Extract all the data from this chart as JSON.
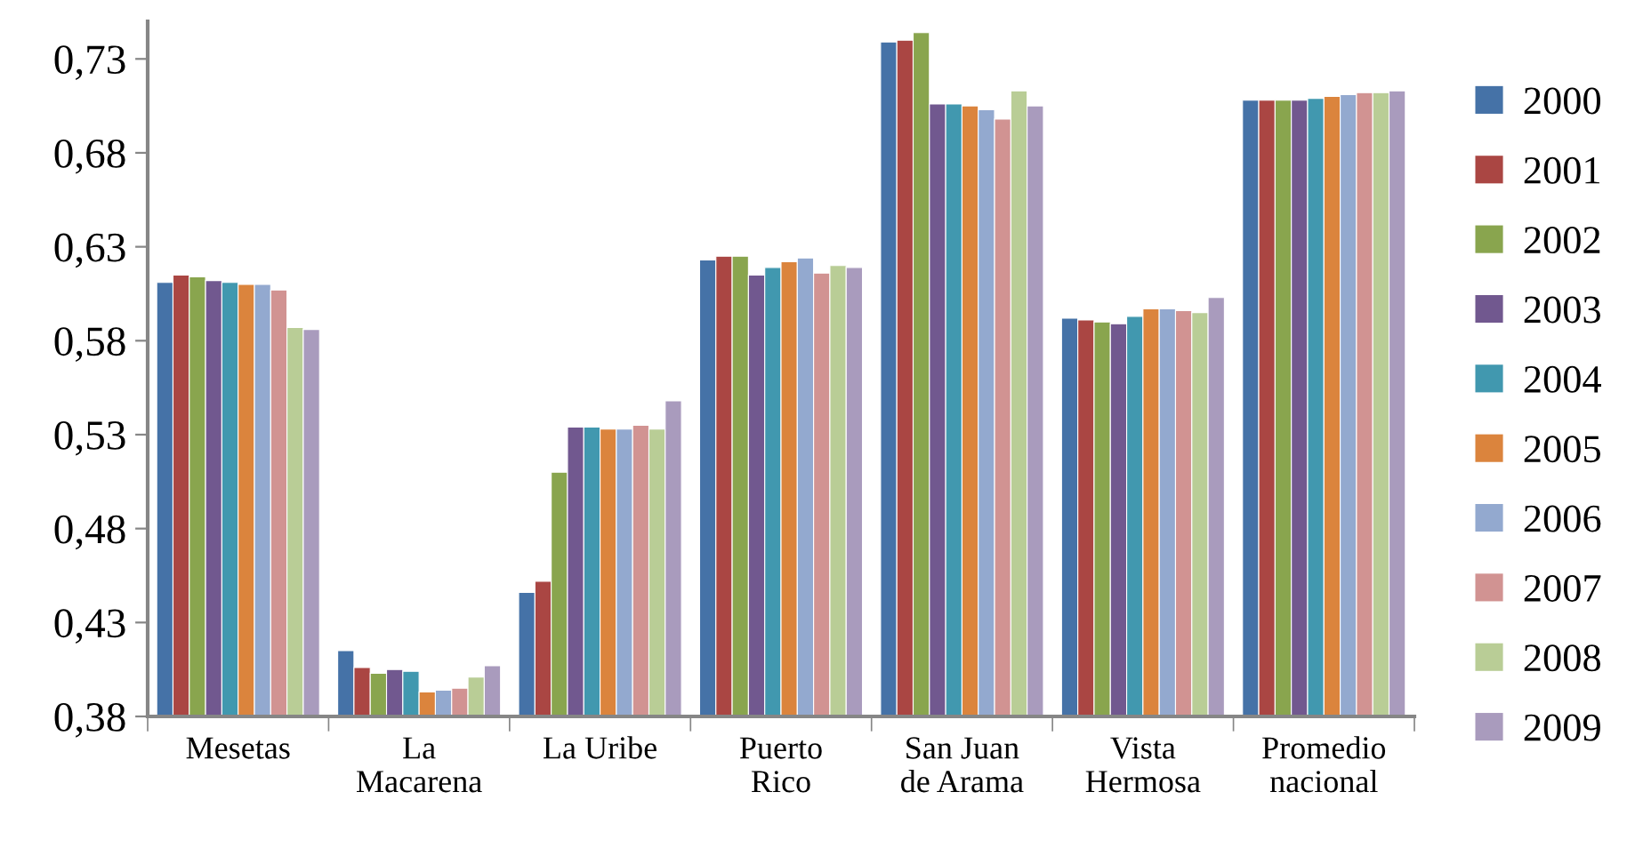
{
  "chart_data": {
    "type": "bar",
    "categories": [
      "Mesetas",
      "La\nMacarena",
      "La Uribe",
      "Puerto\nRico",
      "San Juan\nde Arama",
      "Vista\nHermosa",
      "Promedio\nnacional"
    ],
    "series": [
      {
        "name": "2000",
        "color": "#4572a7",
        "values": [
          0.611,
          0.415,
          0.446,
          0.623,
          0.739,
          0.592,
          0.708
        ]
      },
      {
        "name": "2001",
        "color": "#aa4643",
        "values": [
          0.615,
          0.406,
          0.452,
          0.625,
          0.74,
          0.591,
          0.708
        ]
      },
      {
        "name": "2002",
        "color": "#89a54e",
        "values": [
          0.614,
          0.403,
          0.51,
          0.625,
          0.744,
          0.59,
          0.708
        ]
      },
      {
        "name": "2003",
        "color": "#71588f",
        "values": [
          0.612,
          0.405,
          0.534,
          0.615,
          0.706,
          0.589,
          0.708
        ]
      },
      {
        "name": "2004",
        "color": "#4198af",
        "values": [
          0.611,
          0.404,
          0.534,
          0.619,
          0.706,
          0.593,
          0.709
        ]
      },
      {
        "name": "2005",
        "color": "#db843d",
        "values": [
          0.61,
          0.393,
          0.533,
          0.622,
          0.705,
          0.597,
          0.71
        ]
      },
      {
        "name": "2006",
        "color": "#93a9cf",
        "values": [
          0.61,
          0.394,
          0.533,
          0.624,
          0.703,
          0.597,
          0.711
        ]
      },
      {
        "name": "2007",
        "color": "#d19392",
        "values": [
          0.607,
          0.395,
          0.535,
          0.616,
          0.698,
          0.596,
          0.712
        ]
      },
      {
        "name": "2008",
        "color": "#b9cd96",
        "values": [
          0.587,
          0.401,
          0.533,
          0.62,
          0.713,
          0.595,
          0.712
        ]
      },
      {
        "name": "2009",
        "color": "#a99bbd",
        "values": [
          0.586,
          0.407,
          0.548,
          0.619,
          0.705,
          0.603,
          0.713
        ]
      }
    ],
    "ylim": [
      0.38,
      0.75
    ],
    "yticks": [
      {
        "value": 0.38,
        "label": "0,38"
      },
      {
        "value": 0.43,
        "label": "0,43"
      },
      {
        "value": 0.48,
        "label": "0,48"
      },
      {
        "value": 0.53,
        "label": "0,53"
      },
      {
        "value": 0.58,
        "label": "0,58"
      },
      {
        "value": 0.63,
        "label": "0,63"
      },
      {
        "value": 0.68,
        "label": "0,68"
      },
      {
        "value": 0.73,
        "label": "0,73"
      }
    ],
    "grid": false,
    "legend": "right"
  }
}
